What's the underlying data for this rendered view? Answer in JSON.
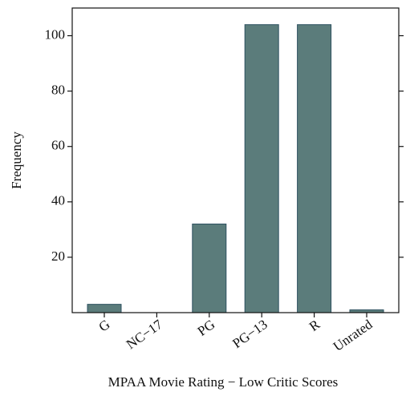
{
  "chart_data": {
    "type": "bar",
    "xlabel": "MPAA Movie Rating − Low Critic Scores",
    "ylabel": "Frequency",
    "categories": [
      "G",
      "NC−17",
      "PG",
      "PG−13",
      "R",
      "Unrated"
    ],
    "values": [
      3,
      0,
      32,
      104,
      104,
      1
    ],
    "color": "#5b7c7b",
    "ylim": [
      0,
      110
    ],
    "yticks": [
      20,
      40,
      60,
      80,
      100
    ],
    "grid": false
  }
}
